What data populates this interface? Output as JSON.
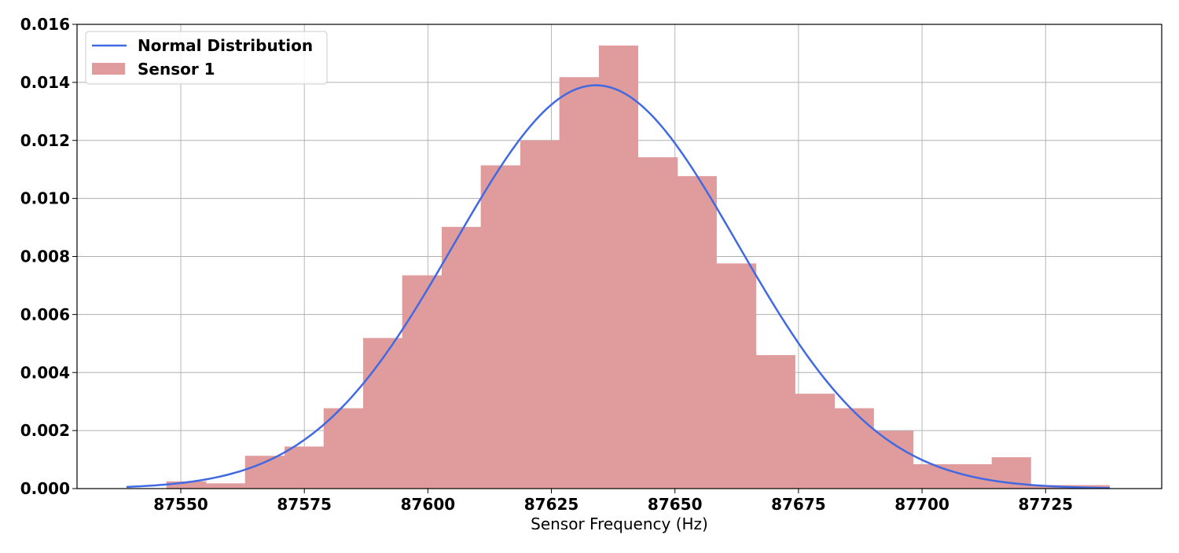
{
  "chart_data": {
    "type": "bar",
    "title": "",
    "xlabel": "Sensor Frequency (Hz)",
    "ylabel": "",
    "xlim": [
      87529,
      87748.5
    ],
    "ylim": [
      0,
      0.016
    ],
    "grid": true,
    "legend_position": "top-left",
    "x_ticks": [
      87550,
      87575,
      87600,
      87625,
      87650,
      87675,
      87700,
      87725
    ],
    "y_ticks": [
      0.0,
      0.002,
      0.004,
      0.006,
      0.008,
      0.01,
      0.012,
      0.014,
      0.016
    ],
    "y_tick_labels": [
      "0.000",
      "0.002",
      "0.004",
      "0.006",
      "0.008",
      "0.010",
      "0.012",
      "0.014",
      "0.016"
    ],
    "x_tick_labels": [
      "87550",
      "87575",
      "87600",
      "87625",
      "87650",
      "87675",
      "87700",
      "87725"
    ],
    "histogram": {
      "name": "Sensor 1",
      "color": "#e09c9c",
      "bin_edges": [
        87547.1,
        87555.1,
        87563.0,
        87571.0,
        87578.9,
        87586.9,
        87594.8,
        87602.8,
        87610.7,
        87618.7,
        87626.6,
        87634.6,
        87642.5,
        87650.5,
        87658.4,
        87666.4,
        87674.3,
        87682.3,
        87690.2,
        87698.2,
        87706.1,
        87714.1,
        87722.0,
        87730.0,
        87737.9
      ],
      "values": [
        0.00025,
        0.00018,
        0.00113,
        0.00145,
        0.00277,
        0.00519,
        0.00735,
        0.00902,
        0.01114,
        0.012,
        0.01418,
        0.01527,
        0.01142,
        0.01077,
        0.00776,
        0.0046,
        0.00327,
        0.00277,
        0.00199,
        0.00084,
        0.00084,
        0.00108,
        0.00012,
        0.00012
      ]
    },
    "series": [
      {
        "name": "Normal Distribution",
        "type": "line",
        "color": "#4169e1",
        "mean": 87634,
        "std": 28.7,
        "x_range": [
          87539,
          87738
        ]
      }
    ]
  }
}
